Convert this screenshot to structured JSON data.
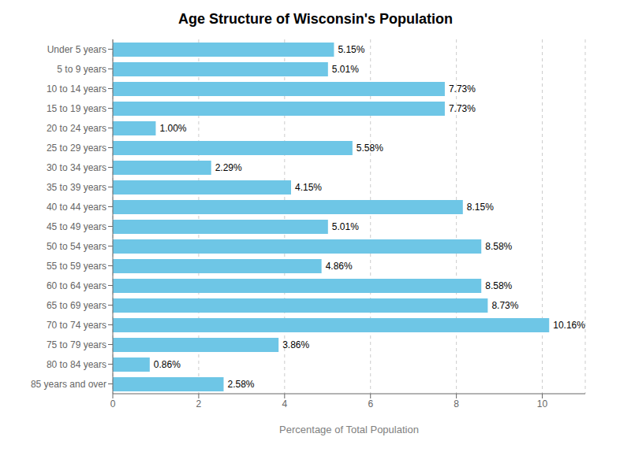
{
  "chart_data": {
    "type": "bar",
    "title": "Age Structure of Wisconsin's Population",
    "xlabel": "Percentage of Total Population",
    "orientation": "horizontal",
    "categories": [
      "Under 5 years",
      "5 to 9 years",
      "10 to 14 years",
      "15 to 19 years",
      "20 to 24 years",
      "25 to 29 years",
      "30 to 34 years",
      "35 to 39 years",
      "40 to 44 years",
      "45 to 49 years",
      "50 to 54 years",
      "55 to 59 years",
      "60 to 64 years",
      "65 to 69 years",
      "70 to 74 years",
      "75 to 79 years",
      "80 to 84 years",
      "85 years and over"
    ],
    "values": [
      5.15,
      5.01,
      7.73,
      7.73,
      1.0,
      5.58,
      2.29,
      4.15,
      8.15,
      5.01,
      8.58,
      4.86,
      8.58,
      8.73,
      10.16,
      3.86,
      0.86,
      2.58
    ],
    "value_labels": [
      "5.15%",
      "5.01%",
      "7.73%",
      "7.73%",
      "1.00%",
      "5.58%",
      "2.29%",
      "4.15%",
      "8.15%",
      "5.01%",
      "8.58%",
      "4.86%",
      "8.58%",
      "8.73%",
      "10.16%",
      "3.86%",
      "0.86%",
      "2.58%"
    ],
    "data_labels": true,
    "color": "#6EC6E6",
    "xlim": [
      0,
      11
    ],
    "xticks": [
      0,
      2,
      4,
      6,
      8,
      10
    ],
    "grid": true
  }
}
